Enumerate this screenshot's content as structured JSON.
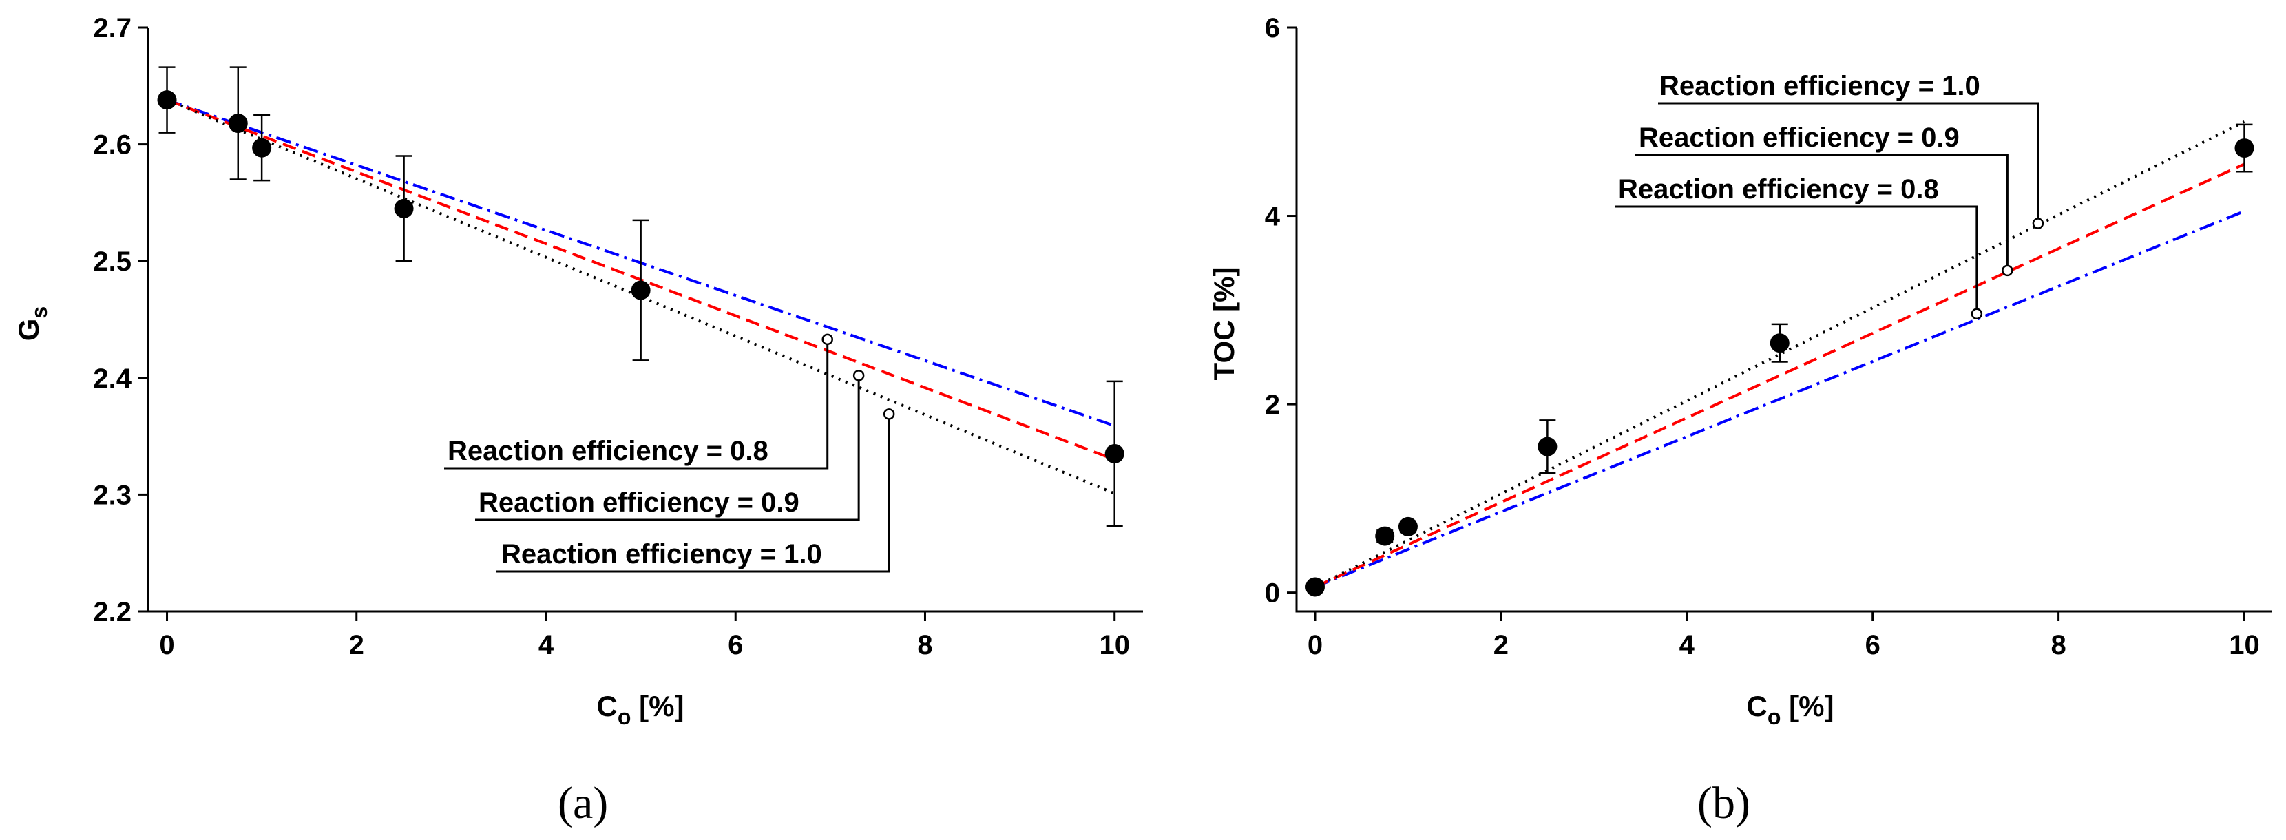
{
  "chart_data": [
    {
      "type": "scatter",
      "panel_label": "(a)",
      "xlabel": "C",
      "xlabel_sub": "o",
      "xlabel_unit": " [%]",
      "ylabel": "G",
      "ylabel_sub": "s",
      "xlim": [
        -0.2,
        10.3
      ],
      "ylim": [
        2.2,
        2.7
      ],
      "xticks": [
        0,
        2,
        4,
        6,
        8,
        10
      ],
      "yticks": [
        2.2,
        2.3,
        2.4,
        2.5,
        2.6,
        2.7
      ],
      "ytick_labels": [
        "2.2",
        "2.3",
        "2.4",
        "2.5",
        "2.6",
        "2.7"
      ],
      "measured": {
        "x": [
          0,
          0.75,
          1,
          2.5,
          5,
          10
        ],
        "y": [
          2.638,
          2.618,
          2.597,
          2.545,
          2.475,
          2.335
        ],
        "err": [
          0.028,
          0.048,
          0.028,
          0.045,
          0.06,
          0.062
        ]
      },
      "series": [
        {
          "name": "Reaction efficiency = 0.8",
          "color": "#0000ff",
          "style": "dashdot",
          "x": [
            0,
            10
          ],
          "y": [
            2.638,
            2.359
          ],
          "marker": {
            "x": 6.97,
            "y": 2.433
          }
        },
        {
          "name": "Reaction efficiency = 0.9",
          "color": "#ff0000",
          "style": "dashed",
          "x": [
            0,
            10
          ],
          "y": [
            2.638,
            2.33
          ],
          "marker": {
            "x": 7.3,
            "y": 2.402
          }
        },
        {
          "name": "Reaction efficiency = 1.0",
          "color": "#000000",
          "style": "dotted",
          "x": [
            0,
            10
          ],
          "y": [
            2.638,
            2.301
          ],
          "marker": {
            "x": 7.62,
            "y": 2.369
          }
        }
      ],
      "annotations": [
        "Reaction efficiency = 0.8",
        "Reaction efficiency = 0.9",
        "Reaction efficiency = 1.0"
      ]
    },
    {
      "type": "scatter",
      "panel_label": "(b)",
      "xlabel": "C",
      "xlabel_sub": "o",
      "xlabel_unit": " [%]",
      "ylabel": "TOC [%]",
      "xlim": [
        -0.2,
        10.3
      ],
      "ylim": [
        -0.2,
        6
      ],
      "xticks": [
        0,
        2,
        4,
        6,
        8,
        10
      ],
      "yticks": [
        0,
        2,
        4,
        6
      ],
      "measured": {
        "x": [
          0,
          0.75,
          1,
          2.5,
          5,
          10
        ],
        "y": [
          0.06,
          0.6,
          0.7,
          1.55,
          2.65,
          4.72
        ],
        "err": [
          0.04,
          0.06,
          0.06,
          0.28,
          0.2,
          0.25
        ]
      },
      "series": [
        {
          "name": "Reaction efficiency = 0.8",
          "color": "#0000ff",
          "style": "dashdot",
          "x": [
            0,
            10
          ],
          "y": [
            0.06,
            4.05
          ],
          "marker": {
            "x": 7.12,
            "y": 2.96
          }
        },
        {
          "name": "Reaction efficiency = 0.9",
          "color": "#ff0000",
          "style": "dashed",
          "x": [
            0,
            10
          ],
          "y": [
            0.06,
            4.55
          ],
          "marker": {
            "x": 7.45,
            "y": 3.42
          }
        },
        {
          "name": "Reaction efficiency = 1.0",
          "color": "#000000",
          "style": "dotted",
          "x": [
            0,
            10
          ],
          "y": [
            0.06,
            5.0
          ],
          "marker": {
            "x": 7.78,
            "y": 3.92
          }
        }
      ],
      "annotations": [
        "Reaction efficiency = 1.0",
        "Reaction efficiency = 0.9",
        "Reaction efficiency = 0.8"
      ]
    }
  ]
}
